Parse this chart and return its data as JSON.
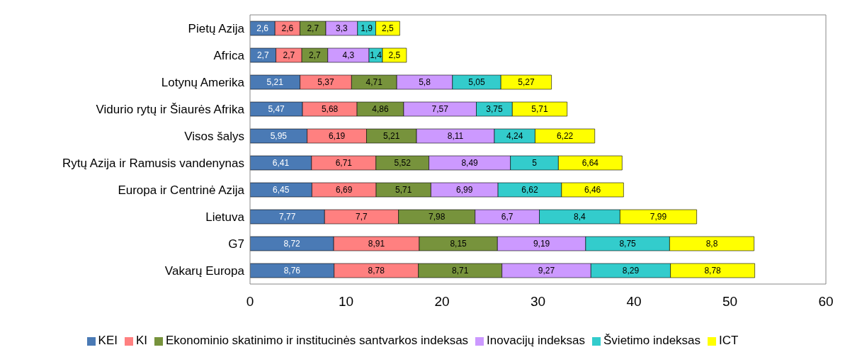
{
  "chart_data": {
    "type": "bar",
    "orientation": "horizontal",
    "stacked": true,
    "categories": [
      "Pietų Azija",
      "Africa",
      "Lotynų Amerika",
      "Vidurio rytų ir Šiaurės Afrika",
      "Visos šalys",
      "Rytų Azija ir Ramusis vandenynas",
      "Europa ir Centrinė Azija",
      "Lietuva",
      "G7",
      "Vakarų Europa"
    ],
    "series": [
      {
        "name": "KEI",
        "color": "#4a7ab5",
        "values": [
          2.6,
          2.7,
          5.21,
          5.47,
          5.95,
          6.41,
          6.45,
          7.77,
          8.72,
          8.76
        ],
        "value_labels": [
          "2,6",
          "2,7",
          "5,21",
          "5,47",
          "5,95",
          "6,41",
          "6,45",
          "7,77",
          "8,72",
          "8,76"
        ]
      },
      {
        "name": "KI",
        "color": "#ff8080",
        "values": [
          2.6,
          2.7,
          5.37,
          5.68,
          6.19,
          6.71,
          6.69,
          7.7,
          8.91,
          8.78
        ],
        "value_labels": [
          "2,6",
          "2,7",
          "5,37",
          "5,68",
          "6,19",
          "6,71",
          "6,69",
          "7,7",
          "8,91",
          "8,78"
        ]
      },
      {
        "name": "Ekonominio skatinimo ir institucinės santvarkos indeksas",
        "color": "#77933c",
        "values": [
          2.7,
          2.7,
          4.71,
          4.86,
          5.21,
          5.52,
          5.71,
          7.98,
          8.15,
          8.71
        ],
        "value_labels": [
          "2,7",
          "2,7",
          "4,71",
          "4,86",
          "5,21",
          "5,52",
          "5,71",
          "7,98",
          "8,15",
          "8,71"
        ]
      },
      {
        "name": "Inovacijų indeksas",
        "color": "#cc99ff",
        "values": [
          3.3,
          4.3,
          5.8,
          7.57,
          8.11,
          8.49,
          6.99,
          6.7,
          9.19,
          9.27
        ],
        "value_labels": [
          "3,3",
          "4,3",
          "5,8",
          "7,57",
          "8,11",
          "8,49",
          "6,99",
          "6,7",
          "9,19",
          "9,27"
        ]
      },
      {
        "name": "Švietimo indeksas",
        "color": "#33cccc",
        "values": [
          1.9,
          1.4,
          5.05,
          3.75,
          4.24,
          5,
          6.62,
          8.4,
          8.75,
          8.29
        ],
        "value_labels": [
          "1,9",
          "1,4",
          "5,05",
          "3,75",
          "4,24",
          "5",
          "6,62",
          "8,4",
          "8,75",
          "8,29"
        ]
      },
      {
        "name": "ICT",
        "color": "#ffff00",
        "values": [
          2.5,
          2.5,
          5.27,
          5.71,
          6.22,
          6.64,
          6.46,
          7.99,
          8.8,
          8.78
        ],
        "value_labels": [
          "2,5",
          "2,5",
          "5,27",
          "5,71",
          "6,22",
          "6,64",
          "6,46",
          "7,99",
          "8,8",
          "8,78"
        ]
      }
    ],
    "xlim": [
      0,
      60
    ],
    "xticks": [
      0,
      10,
      20,
      30,
      40,
      50,
      60
    ],
    "grid": false,
    "legend": "bottom"
  }
}
